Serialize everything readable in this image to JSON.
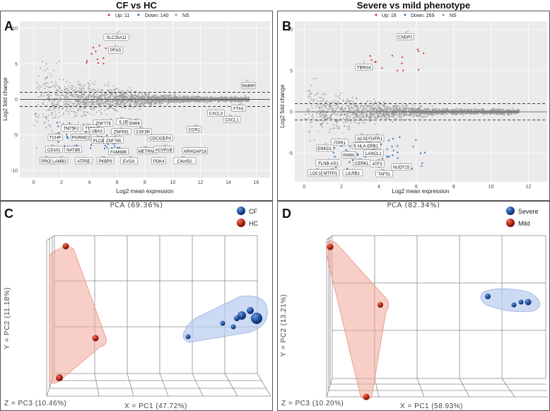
{
  "figure": {
    "panels": [
      "A",
      "B",
      "C",
      "D"
    ]
  },
  "chart_data": [
    {
      "id": "A",
      "type": "scatter",
      "title": "CF vs HC",
      "panel_label": "A",
      "xlabel": "Log2 mean expression",
      "ylabel": "Log2 fold change",
      "xlim": [
        -1,
        17
      ],
      "ylim": [
        -11,
        11
      ],
      "xticks": [
        0,
        2,
        4,
        6,
        8,
        10,
        12,
        14,
        16
      ],
      "yticks": [
        -10,
        -5,
        0,
        5,
        10
      ],
      "threshold_lines": [
        1,
        -1
      ],
      "legend": [
        {
          "label": "Up: 11",
          "color": "#d62728"
        },
        {
          "label": "Down: 140",
          "color": "#2c6db5"
        },
        {
          "label": "NS",
          "color": "#9a9a9a"
        }
      ],
      "labeled_genes": [
        {
          "name": "SLC25A11",
          "x": 6.2,
          "y": 9.2
        },
        {
          "name": "PFAS",
          "x": 5.9,
          "y": 7.4
        },
        {
          "name": "RMRP",
          "x": 15.2,
          "y": 2.4
        },
        {
          "name": "FTH1",
          "x": 15.0,
          "y": -1.0
        },
        {
          "name": "CXCL3",
          "x": 13.1,
          "y": -1.7
        },
        {
          "name": "CXCL1",
          "x": 14.0,
          "y": -2.6
        },
        {
          "name": "CCR1",
          "x": 11.8,
          "y": -4.0
        },
        {
          "name": "ZNF778",
          "x": 5.0,
          "y": -3.1
        },
        {
          "name": "IL1B",
          "x": 6.2,
          "y": -2.9
        },
        {
          "name": "SNRK",
          "x": 7.5,
          "y": -3.1
        },
        {
          "name": "TM75F2",
          "x": 2.7,
          "y": -3.8
        },
        {
          "name": "TTF2",
          "x": 3.8,
          "y": -3.8
        },
        {
          "name": "UBA3",
          "x": 4.8,
          "y": -4.2
        },
        {
          "name": "ZNF691",
          "x": 6.3,
          "y": -4.3
        },
        {
          "name": "CSF3R",
          "x": 7.6,
          "y": -4.3
        },
        {
          "name": "TCHP",
          "x": 1.8,
          "y": -5.1
        },
        {
          "name": "PGRMC2",
          "x": 3.4,
          "y": -5.1
        },
        {
          "name": "PLCB1",
          "x": 4.5,
          "y": -5.5
        },
        {
          "name": "ZNF765",
          "x": 6.0,
          "y": -5.5
        },
        {
          "name": "CDC42EP4",
          "x": 9.1,
          "y": -5.2
        },
        {
          "name": "CD101",
          "x": 1.2,
          "y": -6.8
        },
        {
          "name": "NAT8B",
          "x": 3.1,
          "y": -6.8
        },
        {
          "name": "FAM69B",
          "x": 6.1,
          "y": -7.1
        },
        {
          "name": "METRNL",
          "x": 7.9,
          "y": -7.0
        },
        {
          "name": "ACVR1B",
          "x": 9.6,
          "y": -6.8
        },
        {
          "name": "ARHGAP18",
          "x": 11.6,
          "y": -7.0
        },
        {
          "name": "PROK2",
          "x": 0.8,
          "y": -8.4
        },
        {
          "name": "LAMB3",
          "x": 2.1,
          "y": -8.4
        },
        {
          "name": "ATP5E",
          "x": 3.6,
          "y": -8.4
        },
        {
          "name": "PKBP9",
          "x": 4.9,
          "y": -8.4
        },
        {
          "name": "EVI2A",
          "x": 7.1,
          "y": -8.4
        },
        {
          "name": "PDK4",
          "x": 9.0,
          "y": -8.4
        },
        {
          "name": "C4orf32",
          "x": 10.6,
          "y": -8.4
        }
      ]
    },
    {
      "id": "B",
      "type": "scatter",
      "title": "Severe vs mild phenotype",
      "panel_label": "B",
      "xlabel": "Log2 mean expression",
      "ylabel": "Log2 fold change",
      "xlim": [
        -0.5,
        13
      ],
      "ylim": [
        -8.5,
        11
      ],
      "xticks": [
        0,
        2,
        4,
        6,
        8,
        10,
        12
      ],
      "yticks": [
        -5,
        0,
        5,
        10
      ],
      "threshold_lines": [
        1,
        -1
      ],
      "legend": [
        {
          "label": "Up: 16",
          "color": "#d62728"
        },
        {
          "label": "Down: 269",
          "color": "#2c6db5"
        },
        {
          "label": "NS",
          "color": "#9a9a9a"
        }
      ],
      "labeled_genes": [
        {
          "name": "CNDP2",
          "x": 5.6,
          "y": 9.5
        },
        {
          "name": "TBRG4",
          "x": 3.2,
          "y": 5.8
        },
        {
          "name": "ACSL3",
          "x": 3.0,
          "y": -3.0
        },
        {
          "name": "FGFR1",
          "x": 4.0,
          "y": -3.0
        },
        {
          "name": "ITPR1",
          "x": 1.9,
          "y": -3.5
        },
        {
          "name": "MB21D2",
          "x": 2.9,
          "y": -3.9
        },
        {
          "name": "HLA-DPB1",
          "x": 3.6,
          "y": -3.9
        },
        {
          "name": "ENKD1",
          "x": 1.1,
          "y": -4.2
        },
        {
          "name": "PARN",
          "x": 2.2,
          "y": -5.0
        },
        {
          "name": "LANCL1",
          "x": 3.9,
          "y": -4.8
        },
        {
          "name": "FLNB-AS1",
          "x": 1.3,
          "y": -6.0
        },
        {
          "name": "CERKL",
          "x": 2.9,
          "y": -6.0
        },
        {
          "name": "ATF3",
          "x": 4.1,
          "y": -6.1
        },
        {
          "name": "NUDT15",
          "x": 5.2,
          "y": -6.5
        },
        {
          "name": "LOC1019",
          "x": 0.6,
          "y": -7.2
        },
        {
          "name": "MTFP1",
          "x": 1.6,
          "y": -7.2
        },
        {
          "name": "LILRB1",
          "x": 2.6,
          "y": -7.2
        },
        {
          "name": "TAFSL",
          "x": 4.1,
          "y": -7.3
        }
      ]
    },
    {
      "id": "C",
      "type": "scatter",
      "title": "PCA (69.36%)",
      "panel_label": "C",
      "xlabel": "X = PC1 (47.72%)",
      "ylabel": "Y = PC2 (11.18%)",
      "zlabel": "Z = PC3 (10.46%)",
      "legend": [
        {
          "label": "CF",
          "color": "#2a5fa8"
        },
        {
          "label": "HC",
          "color": "#c0281f"
        }
      ],
      "series": [
        {
          "name": "CF",
          "color": "#2a5fa8",
          "count": 7
        },
        {
          "name": "HC",
          "color": "#c0281f",
          "count": 3
        }
      ]
    },
    {
      "id": "D",
      "type": "scatter",
      "title": "PCA (82.34%)",
      "panel_label": "D",
      "xlabel": "X = PC1 (58.93%)",
      "ylabel": "Y = PC2 (13.21%)",
      "zlabel": "Z = PC3 (10.20%)",
      "legend": [
        {
          "label": "Severe",
          "color": "#2a5fa8"
        },
        {
          "label": "Mild",
          "color": "#c0281f"
        }
      ],
      "series": [
        {
          "name": "Severe",
          "color": "#2a5fa8",
          "count": 4
        },
        {
          "name": "Mild",
          "color": "#c0281f",
          "count": 3
        }
      ]
    }
  ]
}
